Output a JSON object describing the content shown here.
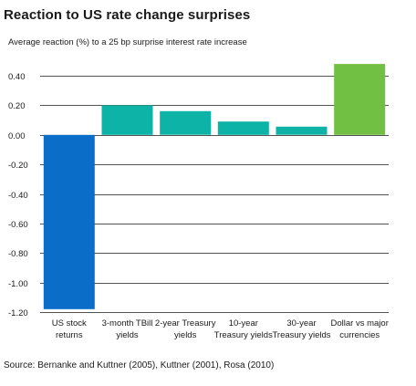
{
  "chart_data": {
    "type": "bar",
    "title": "Reaction to US rate change surprises",
    "subtitle": "Average reaction (%) to a 25 bp surprise interest rate increase",
    "categories": [
      [
        "US stock",
        "returns"
      ],
      [
        "3-month TBill",
        "yields"
      ],
      [
        "2-year Treasury",
        "yields"
      ],
      [
        "10-year",
        "Treasury yields"
      ],
      [
        "30-year",
        "Treasury yields"
      ],
      [
        "Dollar vs major",
        "currencies"
      ]
    ],
    "values": [
      -1.18,
      0.2,
      0.16,
      0.09,
      0.055,
      0.48
    ],
    "colors": [
      "#0a6ec8",
      "#0db3a6",
      "#0db3a6",
      "#0db3a6",
      "#0db3a6",
      "#72c043"
    ],
    "ylim": [
      -1.2,
      0.5
    ],
    "yticks": [
      "0.40",
      "0.20",
      "0.00",
      "-0.20",
      "-0.40",
      "-0.60",
      "-0.80",
      "-1.00",
      "-1.20"
    ],
    "ytick_values": [
      0.4,
      0.2,
      0.0,
      -0.2,
      -0.4,
      -0.6,
      -0.8,
      -1.0,
      -1.2
    ],
    "grid": true,
    "source": "Source: Bernanke and Kuttner (2005), Kuttner (2001), Rosa (2010)"
  }
}
